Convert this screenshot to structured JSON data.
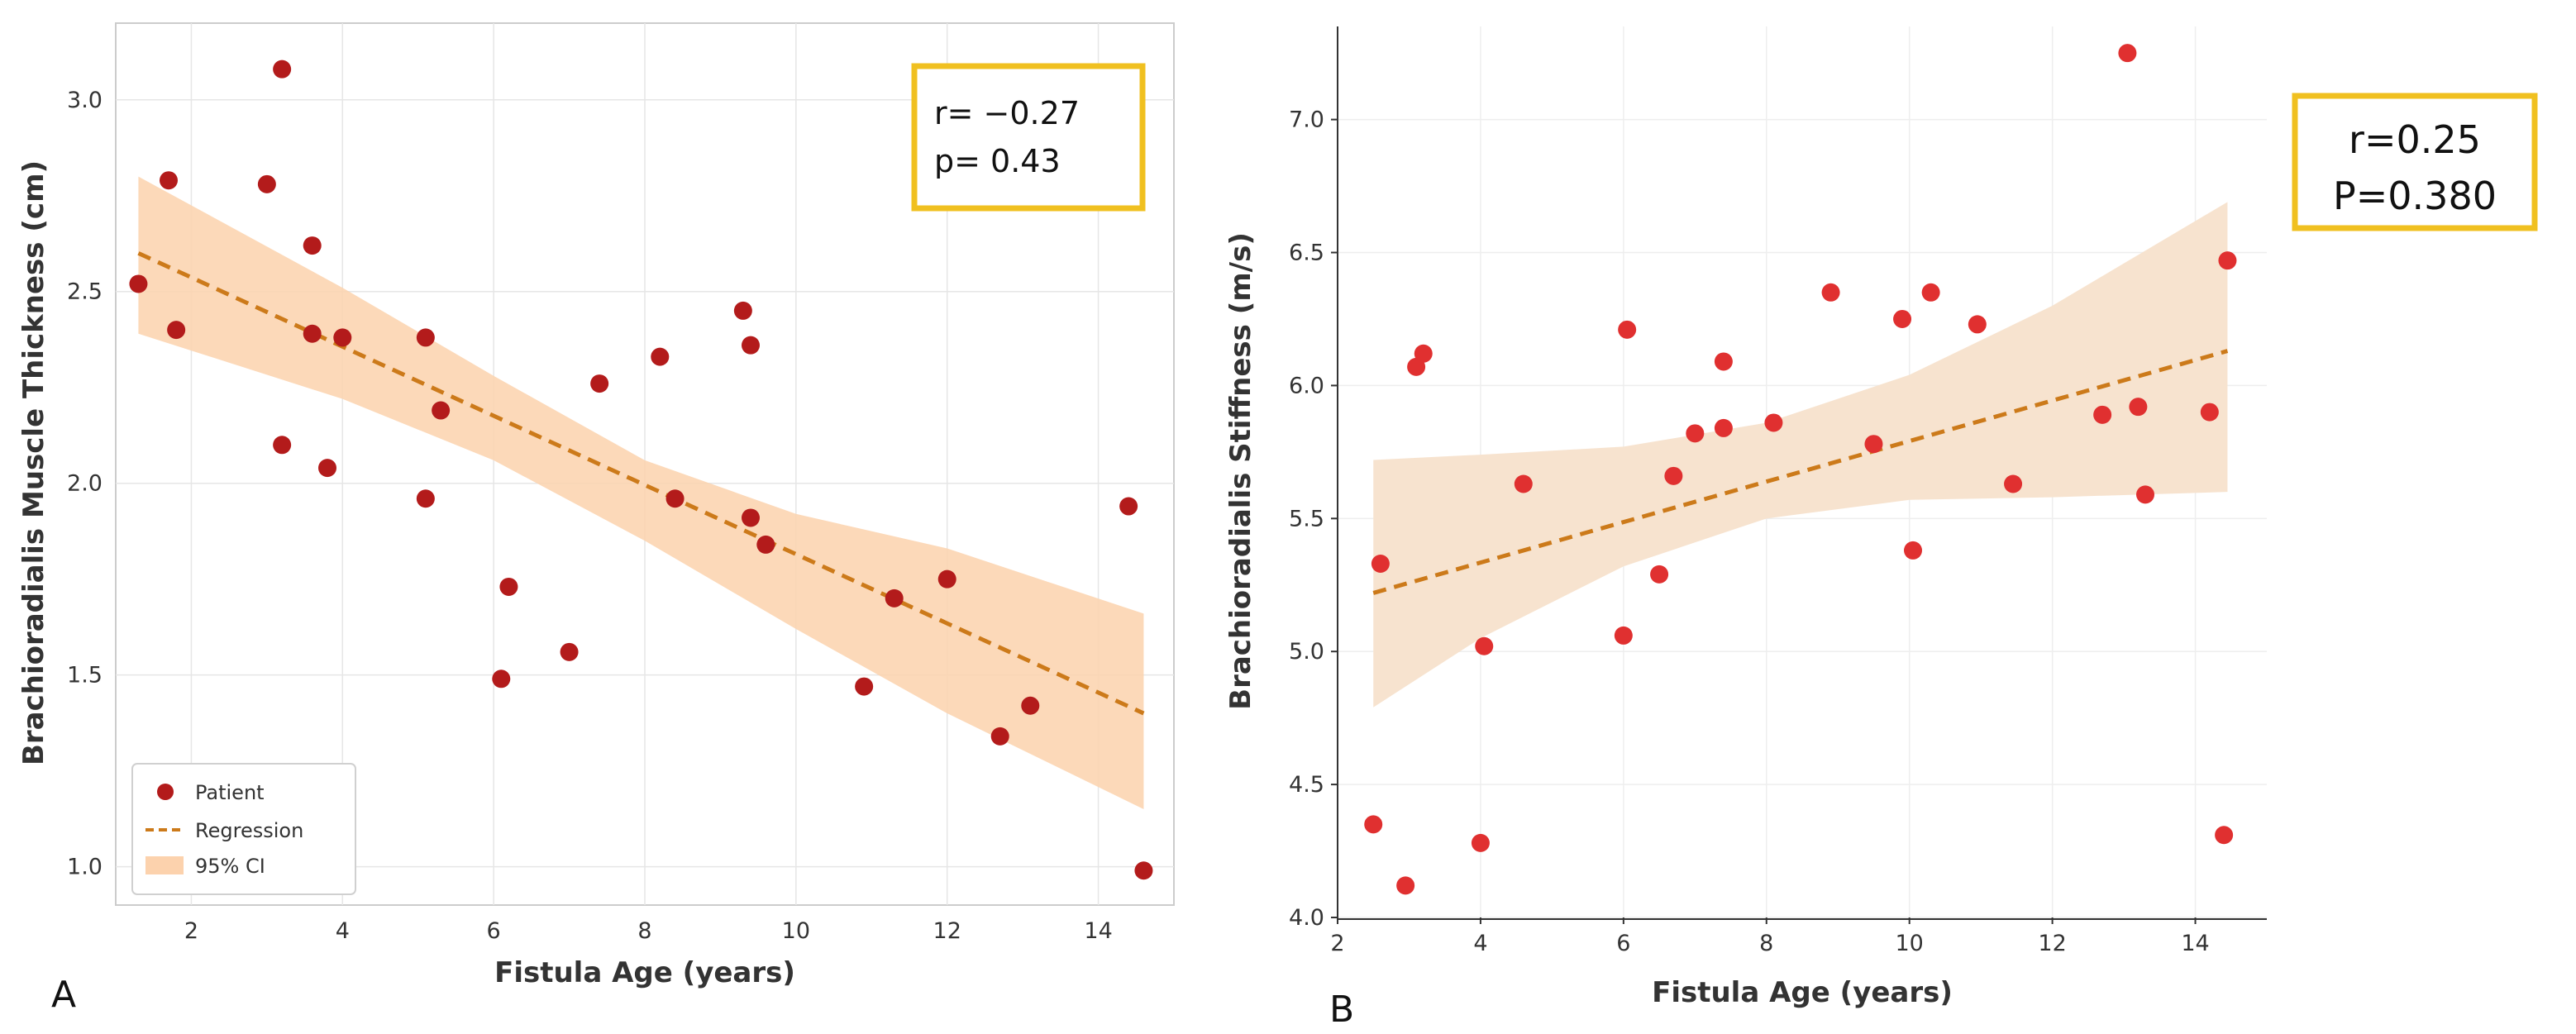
{
  "chart_data": [
    {
      "panel_label": "A",
      "type": "scatter",
      "xlabel": "Fistula Age (years)",
      "ylabel": "Brachioradialis Muscle Thickness (cm)",
      "xlim": [
        1.0,
        15.0
      ],
      "ylim": [
        0.9,
        3.2
      ],
      "xticks": [
        2,
        4,
        6,
        8,
        10,
        12,
        14
      ],
      "yticks": [
        1.0,
        1.5,
        2.0,
        2.5,
        3.0
      ],
      "xtick_labels": [
        "2",
        "4",
        "6",
        "8",
        "10",
        "12",
        "14"
      ],
      "ytick_labels": [
        "1.0",
        "1.5",
        "2.0",
        "2.5",
        "3.0"
      ],
      "grid": true,
      "legend_position": "bottom-left",
      "legend": {
        "points": "Patient",
        "line": "Regression",
        "band": "95% CI"
      },
      "annotation": {
        "lines": [
          "r= −0.27",
          "p= 0.43"
        ]
      },
      "colors": {
        "points": "#b31b1b",
        "line": "#cc7a1a",
        "band": "#fcd2ad",
        "annotation_border": "#f0c020"
      },
      "series": [
        {
          "name": "Patient",
          "points": [
            [
              1.3,
              2.52
            ],
            [
              1.7,
              2.79
            ],
            [
              1.8,
              2.4
            ],
            [
              3.0,
              2.78
            ],
            [
              3.2,
              3.08
            ],
            [
              3.2,
              2.1
            ],
            [
              3.6,
              2.62
            ],
            [
              3.6,
              2.39
            ],
            [
              3.8,
              2.04
            ],
            [
              4.0,
              2.38
            ],
            [
              5.1,
              2.38
            ],
            [
              5.1,
              1.96
            ],
            [
              5.3,
              2.19
            ],
            [
              6.1,
              1.49
            ],
            [
              6.2,
              1.73
            ],
            [
              7.0,
              1.56
            ],
            [
              7.4,
              2.26
            ],
            [
              8.2,
              2.33
            ],
            [
              8.4,
              1.96
            ],
            [
              9.3,
              2.45
            ],
            [
              9.4,
              2.36
            ],
            [
              9.4,
              1.91
            ],
            [
              9.6,
              1.84
            ],
            [
              10.9,
              1.47
            ],
            [
              11.3,
              1.7
            ],
            [
              12.0,
              1.75
            ],
            [
              12.7,
              1.34
            ],
            [
              13.1,
              1.42
            ],
            [
              14.4,
              1.94
            ],
            [
              14.6,
              0.99
            ]
          ]
        }
      ],
      "regression": {
        "x": [
          1.3,
          14.6
        ],
        "y": [
          2.6,
          1.4
        ]
      },
      "ci_band": {
        "x": [
          1.3,
          4.0,
          6.0,
          8.0,
          10.0,
          12.0,
          14.6
        ],
        "upper": [
          2.8,
          2.51,
          2.28,
          2.06,
          1.92,
          1.83,
          1.66
        ],
        "lower": [
          2.39,
          2.22,
          2.06,
          1.85,
          1.62,
          1.4,
          1.15
        ]
      }
    },
    {
      "panel_label": "B",
      "type": "scatter",
      "xlabel": "Fistula Age (years)",
      "ylabel": "Brachioradialis Stiffness (m/s)",
      "xlim": [
        2.0,
        15.0
      ],
      "ylim": [
        4.0,
        7.35
      ],
      "xticks": [
        2,
        4,
        6,
        8,
        10,
        12,
        14
      ],
      "yticks": [
        4.0,
        4.5,
        5.0,
        5.5,
        6.0,
        6.5,
        7.0
      ],
      "xtick_labels": [
        "2",
        "4",
        "6",
        "8",
        "10",
        "12",
        "14"
      ],
      "ytick_labels": [
        "4.0",
        "4.5",
        "5.0",
        "5.5",
        "6.0",
        "6.5",
        "7.0"
      ],
      "grid": true,
      "annotation": {
        "lines": [
          "r=0.25",
          "P=0.380"
        ]
      },
      "colors": {
        "points": "#e03030",
        "line": "#cc7a1a",
        "band": "#f7e2cc",
        "annotation_border": "#f0c020"
      },
      "series": [
        {
          "name": "",
          "points": [
            [
              2.5,
              4.35
            ],
            [
              2.6,
              5.33
            ],
            [
              2.95,
              4.12
            ],
            [
              3.1,
              6.07
            ],
            [
              3.2,
              6.12
            ],
            [
              4.0,
              4.28
            ],
            [
              4.05,
              5.02
            ],
            [
              4.6,
              5.63
            ],
            [
              6.0,
              5.06
            ],
            [
              6.05,
              6.21
            ],
            [
              6.5,
              5.29
            ],
            [
              6.7,
              5.66
            ],
            [
              7.0,
              5.82
            ],
            [
              7.4,
              6.09
            ],
            [
              7.4,
              5.84
            ],
            [
              8.1,
              5.86
            ],
            [
              8.9,
              6.35
            ],
            [
              9.5,
              5.78
            ],
            [
              9.9,
              6.25
            ],
            [
              10.05,
              5.38
            ],
            [
              10.3,
              6.35
            ],
            [
              10.95,
              6.23
            ],
            [
              11.45,
              5.63
            ],
            [
              12.7,
              5.89
            ],
            [
              13.05,
              7.25
            ],
            [
              13.2,
              5.92
            ],
            [
              13.3,
              5.59
            ],
            [
              14.2,
              5.9
            ],
            [
              14.4,
              4.31
            ],
            [
              14.45,
              6.47
            ]
          ]
        }
      ],
      "regression": {
        "x": [
          2.5,
          14.45
        ],
        "y": [
          5.22,
          6.13
        ]
      },
      "ci_band": {
        "x": [
          2.5,
          4.0,
          6.0,
          8.0,
          10.0,
          12.0,
          14.45
        ],
        "upper": [
          5.72,
          5.74,
          5.77,
          5.86,
          6.04,
          6.3,
          6.69
        ],
        "lower": [
          4.79,
          5.05,
          5.32,
          5.5,
          5.57,
          5.58,
          5.6
        ]
      }
    }
  ]
}
